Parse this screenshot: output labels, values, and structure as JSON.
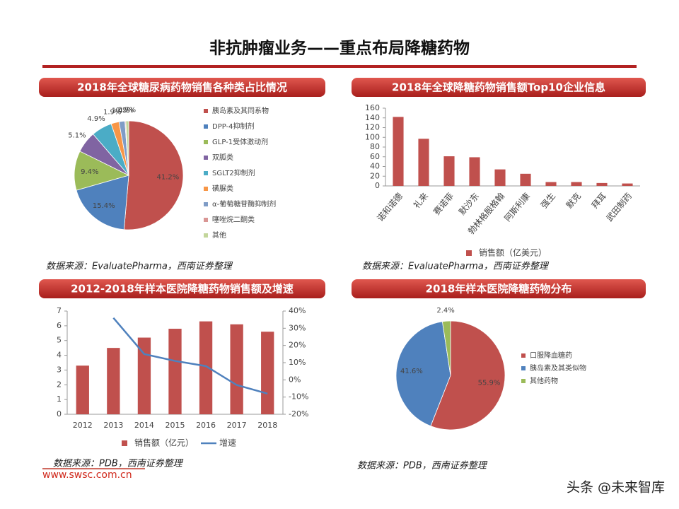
{
  "title": "非抗肿瘤业务——重点布局降糖药物",
  "footer": "www.swsc.com.cn",
  "watermark": "头条 @未来智库",
  "chart_data": [
    {
      "type": "pie",
      "title": "2018年全球糖尿病药物销售各种类占比情况",
      "categories": [
        "胰岛素及其同系物",
        "DPP-4抑制剂",
        "GLP-1受体激动剂",
        "双胍类",
        "SGLT2抑制剂",
        "磺脲类",
        "α-葡萄糖苷酶抑制剂",
        "噻唑烷二酮类",
        "其他"
      ],
      "values": [
        41.2,
        15.4,
        9.4,
        5.1,
        4.9,
        1.9,
        1.4,
        0.2,
        0.7
      ],
      "value_labels": [
        "41.2%",
        "15.4%",
        "9.4%",
        "5.1%",
        "4.9%",
        "1.9%",
        "1.4%",
        "0.2%",
        "0.7%"
      ],
      "colors": [
        "#c0504d",
        "#4f81bd",
        "#9bbb59",
        "#8064a2",
        "#4bacc6",
        "#f79646",
        "#7f9cc6",
        "#d99694",
        "#c3d69b"
      ],
      "source": "数据来源：EvaluatePharma，西南证券整理"
    },
    {
      "type": "bar",
      "title": "2018年全球降糖药物销售额Top10企业信息",
      "categories": [
        "诺和诺德",
        "礼来",
        "赛诺菲",
        "默沙东",
        "勃林格殷格翰",
        "阿斯利康",
        "强生",
        "默克",
        "拜耳",
        "武田制药"
      ],
      "series": [
        {
          "name": "销售额（亿美元）",
          "color": "#c0504d",
          "values": [
            142,
            97,
            61,
            59,
            34,
            25,
            8,
            8,
            6,
            5
          ]
        }
      ],
      "ylim": [
        0,
        160
      ],
      "yticks": [
        0,
        20,
        40,
        60,
        80,
        100,
        120,
        140,
        160
      ],
      "source": "数据来源：EvaluatePharma，西南证券整理"
    },
    {
      "type": "bar",
      "title": "2012-2018年样本医院降糖药物销售额及增速",
      "categories": [
        "2012",
        "2013",
        "2014",
        "2015",
        "2016",
        "2017",
        "2018"
      ],
      "series": [
        {
          "name": "销售额（亿元）",
          "color": "#c0504d",
          "values": [
            3.3,
            4.5,
            5.2,
            5.8,
            6.3,
            6.1,
            5.6
          ]
        },
        {
          "name": "增速",
          "type": "line",
          "color": "#4f81bd",
          "axis": "y2",
          "values": [
            null,
            36,
            15,
            11,
            8,
            -3,
            -8
          ]
        }
      ],
      "ylim": [
        0,
        7
      ],
      "yticks": [
        0,
        1,
        2,
        3,
        4,
        5,
        6,
        7
      ],
      "y2lim": [
        -20,
        40
      ],
      "y2ticks": [
        {
          "value": -20,
          "label": "-20%"
        },
        {
          "value": -10,
          "label": "-10%"
        },
        {
          "value": 0,
          "label": "0%"
        },
        {
          "value": 10,
          "label": "10%"
        },
        {
          "value": 20,
          "label": "20%"
        },
        {
          "value": 30,
          "label": "30%"
        },
        {
          "value": 40,
          "label": "40%"
        }
      ],
      "source": "数据来源：PDB，西南证券整理"
    },
    {
      "type": "pie",
      "title": "2018年样本医院降糖药物分布",
      "categories": [
        "口服降血糖药",
        "胰岛素及其类似物",
        "其他药物"
      ],
      "values": [
        55.9,
        41.6,
        2.4
      ],
      "value_labels": [
        "55.9%",
        "41.6%",
        "2.4%"
      ],
      "colors": [
        "#c0504d",
        "#4f81bd",
        "#9bbb59"
      ],
      "source": "数据来源：PDB，西南证券整理"
    }
  ]
}
